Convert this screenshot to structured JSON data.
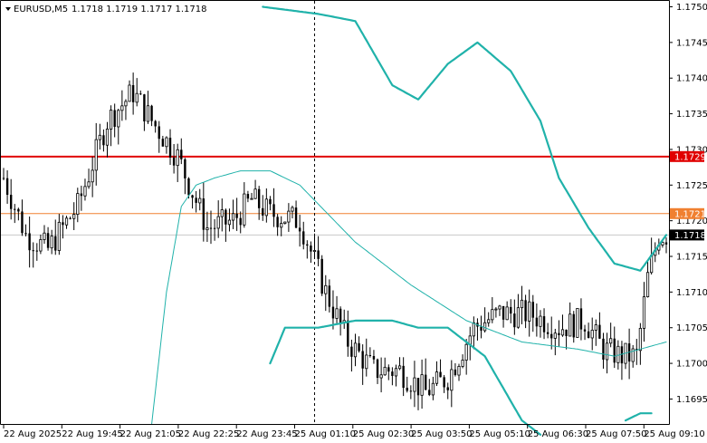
{
  "header": {
    "symbol": "EURUSD,M5",
    "ohlc": "1.1718 1.1719 1.1717 1.1718"
  },
  "colors": {
    "candle": "#000000",
    "band": "#20b2aa",
    "ma": "#20b2aa",
    "hline_red": "#e00000",
    "hline_orange": "#f08030",
    "last_price_label": "#000000",
    "grid_frame": "#000000"
  },
  "chart_data": {
    "type": "candlestick",
    "y_ticks": [
      "1.1750",
      "1.1745",
      "1.1740",
      "1.1735",
      "1.1730",
      "1.1725",
      "1.1720",
      "1.1715",
      "1.1710",
      "1.1705",
      "1.1700",
      "1.1695"
    ],
    "ylim": [
      1.16915,
      1.17507
    ],
    "x_ticks": [
      "22 Aug 2025",
      "22 Aug 19:45",
      "22 Aug 21:05",
      "22 Aug 22:25",
      "22 Aug 23:45",
      "25 Aug 01:10",
      "25 Aug 02:30",
      "25 Aug 03:50",
      "25 Aug 05:10",
      "25 Aug 06:30",
      "25 Aug 07:50",
      "25 Aug 09:10"
    ],
    "price_markers": [
      {
        "value": 1.1729,
        "label": "1.1729",
        "style": "red"
      },
      {
        "value": 1.1721,
        "label": "1.1721",
        "style": "orange"
      },
      {
        "value": 1.1718,
        "label": "1.1718",
        "style": "last"
      }
    ],
    "bar_count": 180,
    "close_path": [
      [
        0,
        1.1726
      ],
      [
        6,
        1.1718
      ],
      [
        12,
        1.1716
      ],
      [
        20,
        1.1722
      ],
      [
        28,
        1.1734
      ],
      [
        35,
        1.1738
      ],
      [
        40,
        1.1734
      ],
      [
        47,
        1.1729
      ],
      [
        55,
        1.1719
      ],
      [
        62,
        1.172
      ],
      [
        67,
        1.1723
      ],
      [
        72,
        1.1721
      ],
      [
        80,
        1.172
      ],
      [
        87,
        1.171
      ],
      [
        93,
        1.1703
      ],
      [
        100,
        1.1699
      ],
      [
        107,
        1.1699
      ],
      [
        114,
        1.1696
      ],
      [
        120,
        1.1698
      ],
      [
        127,
        1.1705
      ],
      [
        134,
        1.1707
      ],
      [
        142,
        1.1707
      ],
      [
        150,
        1.1705
      ],
      [
        157,
        1.1706
      ],
      [
        162,
        1.1702
      ],
      [
        167,
        1.1701
      ],
      [
        171,
        1.1701
      ],
      [
        174,
        1.1712
      ],
      [
        177,
        1.1718
      ],
      [
        179,
        1.1718
      ]
    ],
    "ma_path": [
      [
        40,
        1.16915
      ],
      [
        44,
        1.171
      ],
      [
        48,
        1.1722
      ],
      [
        52,
        1.1725
      ],
      [
        57,
        1.1726
      ],
      [
        64,
        1.1727
      ],
      [
        72,
        1.1727
      ],
      [
        80,
        1.1725
      ],
      [
        95,
        1.1717
      ],
      [
        110,
        1.1711
      ],
      [
        125,
        1.1706
      ],
      [
        140,
        1.1703
      ],
      [
        155,
        1.1702
      ],
      [
        165,
        1.1701
      ],
      [
        172,
        1.1702
      ],
      [
        179,
        1.1703
      ]
    ],
    "band_upper_path": [
      [
        70,
        1.175
      ],
      [
        85,
        1.1749
      ],
      [
        95,
        1.1748
      ],
      [
        105,
        1.1739
      ],
      [
        112,
        1.1737
      ],
      [
        120,
        1.1742
      ],
      [
        128,
        1.1745
      ],
      [
        137,
        1.1741
      ],
      [
        145,
        1.1734
      ],
      [
        150,
        1.1726
      ],
      [
        158,
        1.1719
      ],
      [
        165,
        1.1714
      ],
      [
        172,
        1.1713
      ],
      [
        179,
        1.1718
      ]
    ],
    "band_lower_path": [
      [
        72,
        1.17
      ],
      [
        76,
        1.1705
      ],
      [
        85,
        1.1705
      ],
      [
        95,
        1.1706
      ],
      [
        105,
        1.1706
      ],
      [
        112,
        1.1705
      ],
      [
        120,
        1.1705
      ],
      [
        130,
        1.1701
      ],
      [
        140,
        1.1692
      ],
      [
        145,
        1.169
      ]
    ],
    "band_lower_tail_path": [
      [
        168,
        1.1692
      ],
      [
        172,
        1.1693
      ],
      [
        175,
        1.1693
      ]
    ],
    "session_divider_bar": 84
  }
}
